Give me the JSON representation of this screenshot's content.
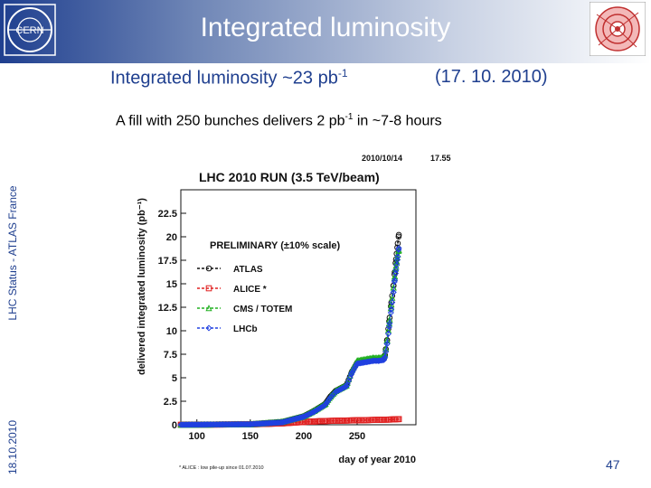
{
  "slide": {
    "title": "Integrated luminosity",
    "subtitle_main": "Integrated luminosity ~23 pb",
    "subtitle_sup": "-1",
    "date": "(17. 10. 2010)",
    "note_main": "A fill with 250 bunches delivers 2 pb",
    "note_sup": "-1",
    "note_tail": " in ~7-8 hours",
    "side_label": "LHC Status - ATLAS France",
    "side_date": "18.10.2010",
    "page_number": "47",
    "logo_text": "CERN"
  },
  "chart_data": {
    "type": "line",
    "title": "LHC 2010 RUN (3.5 TeV/beam)",
    "timestamp": "2010/10/14",
    "time": "17.55",
    "preliminary": "PRELIMINARY (±10% scale)",
    "xlabel": "day of year 2010",
    "ylabel": "delivered integrated luminosity (pb⁻¹)",
    "footnote": "* ALICE : low pile-up since 01.07.2010",
    "xlim": [
      85,
      305
    ],
    "ylim": [
      0,
      25
    ],
    "xticks": [
      100,
      150,
      200,
      250
    ],
    "yticks": [
      0,
      2.5,
      5,
      7.5,
      10,
      12.5,
      15,
      17.5,
      20,
      22.5
    ],
    "colors": {
      "ATLAS": "#111111",
      "ALICE *": "#e02020",
      "CMS / TOTEM": "#20b020",
      "LHCb": "#2040e0"
    },
    "series": [
      {
        "name": "ATLAS",
        "marker": "circle",
        "x": [
          85,
          150,
          180,
          200,
          210,
          220,
          225,
          230,
          235,
          240,
          245,
          250,
          255,
          260,
          265,
          270,
          275,
          276,
          278,
          280,
          282,
          284,
          285,
          286,
          287,
          288,
          289
        ],
        "y": [
          0,
          0.05,
          0.3,
          0.9,
          1.5,
          2.2,
          3.0,
          3.6,
          3.9,
          4.2,
          5.6,
          6.6,
          6.7,
          6.8,
          6.9,
          6.9,
          7.0,
          7.4,
          9.0,
          11.0,
          13.0,
          14.8,
          16.0,
          17.2,
          18.2,
          19.3,
          20.2
        ]
      },
      {
        "name": "ALICE *",
        "marker": "square",
        "x": [
          85,
          150,
          180,
          200,
          210,
          220,
          240,
          260,
          280,
          289
        ],
        "y": [
          0,
          0.04,
          0.15,
          0.3,
          0.35,
          0.4,
          0.45,
          0.5,
          0.55,
          0.6
        ]
      },
      {
        "name": "CMS / TOTEM",
        "marker": "triangle",
        "x": [
          85,
          150,
          180,
          200,
          210,
          220,
          225,
          230,
          235,
          240,
          245,
          250,
          255,
          260,
          265,
          270,
          275,
          276,
          278,
          280,
          282,
          284,
          285,
          286,
          287,
          288,
          289
        ],
        "y": [
          0,
          0.05,
          0.3,
          0.9,
          1.5,
          2.2,
          3.0,
          3.6,
          3.9,
          4.2,
          5.8,
          6.8,
          6.9,
          7.0,
          7.1,
          7.1,
          7.2,
          7.5,
          9.0,
          10.8,
          12.8,
          14.6,
          15.6,
          16.6,
          17.4,
          18.1,
          18.6
        ]
      },
      {
        "name": "LHCb",
        "marker": "diamond",
        "x": [
          85,
          150,
          180,
          200,
          210,
          220,
          225,
          230,
          235,
          240,
          245,
          250,
          255,
          260,
          265,
          270,
          275,
          276,
          278,
          280,
          282,
          284,
          285,
          286,
          287,
          288,
          289
        ],
        "y": [
          0,
          0.05,
          0.25,
          0.85,
          1.4,
          2.1,
          2.9,
          3.5,
          3.8,
          4.1,
          5.5,
          6.5,
          6.6,
          6.7,
          6.8,
          6.8,
          6.9,
          7.2,
          8.6,
          10.4,
          12.3,
          14.1,
          15.2,
          16.1,
          17.0,
          17.9,
          18.8
        ]
      }
    ]
  }
}
